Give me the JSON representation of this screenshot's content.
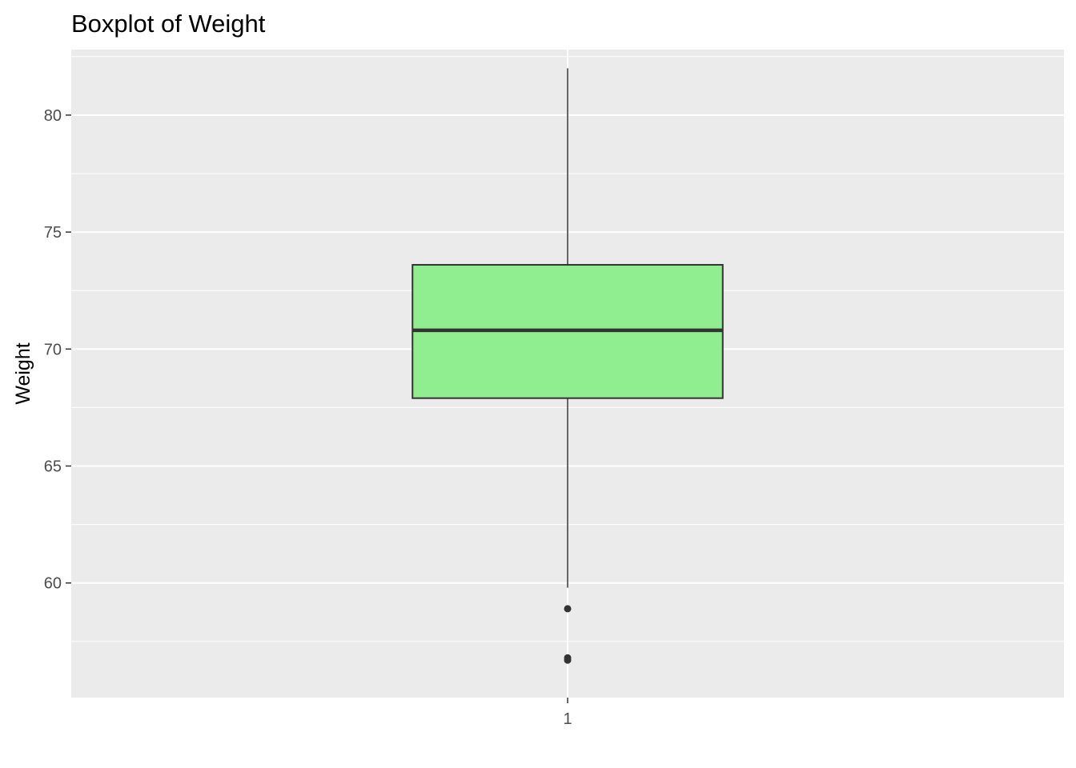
{
  "chart_data": {
    "type": "boxplot",
    "title": "Boxplot of Weight",
    "xlabel": "",
    "ylabel": "Weight",
    "categories": [
      "1"
    ],
    "ylim": [
      55.1,
      82.8
    ],
    "y_ticks": [
      60,
      65,
      70,
      75,
      80
    ],
    "y_tick_labels": [
      "60",
      "65",
      "70",
      "75",
      "80"
    ],
    "boxes": [
      {
        "category": "1",
        "whisker_low": 59.8,
        "q1": 67.9,
        "median": 70.8,
        "q3": 73.6,
        "whisker_high": 82.0,
        "outliers": [
          58.9,
          56.7,
          56.8
        ]
      }
    ],
    "grid": true,
    "legend": "none",
    "colors": {
      "panel_background": "#ebebeb",
      "grid_line": "#ffffff",
      "box_fill": "#90ee90",
      "box_outline": "#333333",
      "median_line": "#333333",
      "outlier_point": "#333333",
      "tick_text": "#4d4d4d",
      "tick_mark": "#333333"
    }
  }
}
